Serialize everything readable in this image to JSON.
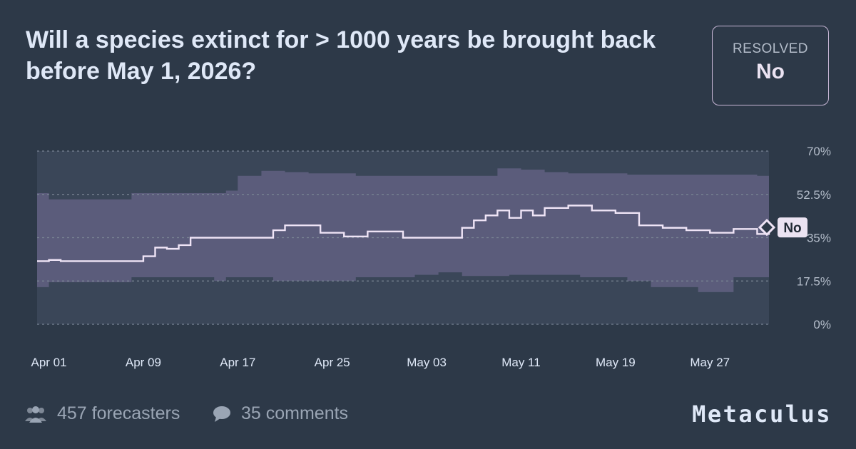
{
  "title": "Will a species extinct for > 1000 years be brought back before May 1, 2026?",
  "status": {
    "label": "RESOLVED",
    "value": "No"
  },
  "footer": {
    "forecasters": "457 forecasters",
    "comments": "35 comments",
    "brand": "Metaculus"
  },
  "colors": {
    "background": "#2d3948",
    "band": "#5d5e7d",
    "plot_bg": "#3a4658",
    "line": "#efe4f6",
    "grid": "#7a8594"
  },
  "chart_data": {
    "type": "line",
    "y_unit": "%",
    "ylim": [
      0,
      70
    ],
    "y_ticks": [
      0,
      17.5,
      35,
      52.5,
      70
    ],
    "y_tick_labels": [
      "0%",
      "17.5%",
      "35%",
      "52.5%",
      "70%"
    ],
    "x_range": [
      "2025-03-31",
      "2025-06-01"
    ],
    "x_ticks": [
      "2025-04-01",
      "2025-04-09",
      "2025-04-17",
      "2025-04-25",
      "2025-05-03",
      "2025-05-11",
      "2025-05-19",
      "2025-05-27"
    ],
    "x_tick_labels": [
      "Apr 01",
      "Apr 09",
      "Apr 17",
      "Apr 25",
      "May 03",
      "May 11",
      "May 19",
      "May 27"
    ],
    "grid": true,
    "resolution_label": "No",
    "series": [
      {
        "values": [
          [
            "2025-03-31",
            25.5
          ],
          [
            "2025-04-01",
            26
          ],
          [
            "2025-04-02",
            25.5
          ],
          [
            "2025-04-08",
            25.5
          ],
          [
            "2025-04-09",
            27.5
          ],
          [
            "2025-04-10",
            31
          ],
          [
            "2025-04-11",
            30.5
          ],
          [
            "2025-04-12",
            32
          ],
          [
            "2025-04-13",
            35
          ],
          [
            "2025-04-17",
            35
          ],
          [
            "2025-04-18",
            35
          ],
          [
            "2025-04-20",
            38
          ],
          [
            "2025-04-21",
            40
          ],
          [
            "2025-04-24",
            37
          ],
          [
            "2025-04-26",
            35.5
          ],
          [
            "2025-04-28",
            37.5
          ],
          [
            "2025-05-01",
            35
          ],
          [
            "2025-05-05",
            35
          ],
          [
            "2025-05-06",
            39
          ],
          [
            "2025-05-07",
            42
          ],
          [
            "2025-05-08",
            44
          ],
          [
            "2025-05-09",
            46
          ],
          [
            "2025-05-10",
            43
          ],
          [
            "2025-05-11",
            46
          ],
          [
            "2025-05-12",
            44
          ],
          [
            "2025-05-13",
            47
          ],
          [
            "2025-05-15",
            48
          ],
          [
            "2025-05-17",
            46
          ],
          [
            "2025-05-19",
            45
          ],
          [
            "2025-05-21",
            40
          ],
          [
            "2025-05-23",
            39
          ],
          [
            "2025-05-25",
            38
          ],
          [
            "2025-05-27",
            37
          ],
          [
            "2025-05-29",
            38.5
          ],
          [
            "2025-05-31",
            36.5
          ],
          [
            "2025-06-01",
            39
          ]
        ]
      },
      {
        "name": "band_upper",
        "values": [
          [
            "2025-03-31",
            53
          ],
          [
            "2025-04-01",
            50.5
          ],
          [
            "2025-04-08",
            53
          ],
          [
            "2025-04-15",
            53
          ],
          [
            "2025-04-16",
            54
          ],
          [
            "2025-04-17",
            60
          ],
          [
            "2025-04-19",
            62
          ],
          [
            "2025-04-21",
            61.5
          ],
          [
            "2025-04-23",
            61
          ],
          [
            "2025-04-27",
            60
          ],
          [
            "2025-05-04",
            60
          ],
          [
            "2025-05-09",
            63
          ],
          [
            "2025-05-11",
            62.5
          ],
          [
            "2025-05-13",
            61.5
          ],
          [
            "2025-05-15",
            61
          ],
          [
            "2025-05-20",
            60.5
          ],
          [
            "2025-05-31",
            60
          ],
          [
            "2025-06-01",
            55
          ]
        ]
      },
      {
        "name": "band_lower",
        "values": [
          [
            "2025-03-31",
            18
          ],
          [
            "2025-04-01",
            15
          ],
          [
            "2025-04-08",
            17
          ],
          [
            "2025-04-10",
            19
          ],
          [
            "2025-04-15",
            19
          ],
          [
            "2025-04-16",
            17.5
          ],
          [
            "2025-04-20",
            19
          ],
          [
            "2025-04-27",
            17.5
          ],
          [
            "2025-05-02",
            19
          ],
          [
            "2025-05-04",
            20
          ],
          [
            "2025-05-06",
            21
          ],
          [
            "2025-05-10",
            19.5
          ],
          [
            "2025-05-16",
            20
          ],
          [
            "2025-05-20",
            19
          ],
          [
            "2025-05-22",
            17.5
          ],
          [
            "2025-05-26",
            15
          ],
          [
            "2025-05-29",
            13
          ],
          [
            "2025-06-01",
            19
          ]
        ]
      }
    ]
  }
}
